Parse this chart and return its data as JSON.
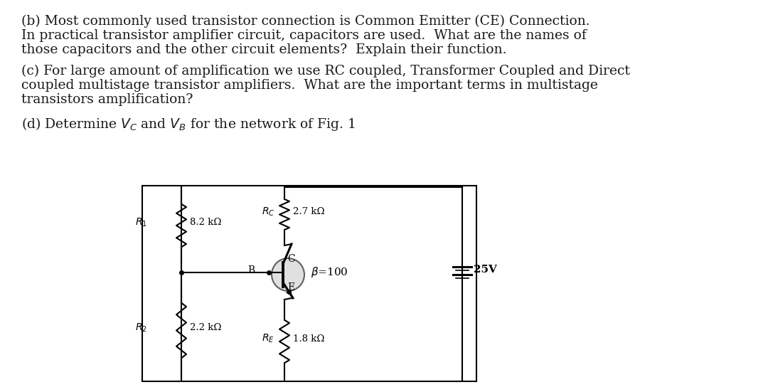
{
  "bg_color": "#ffffff",
  "text_color": "#1a1a1a",
  "line1b": "(b) Most commonly used transistor connection is Common Emitter (CE) Connection.",
  "line2b": "In practical transistor amplifier circuit, capacitors are used.  What are the names of",
  "line3b": "those capacitors and the other circuit elements?  Explain their function.",
  "line1c": "(c) For large amount of amplification we use RC coupled, Transformer Coupled and Direct",
  "line2c": "coupled multistage transistor amplifiers.  What are the important terms in multistage",
  "line3c": "transistors amplification?",
  "line_d": "(d) Determine $V_C$ and $V_B$ for the network of Fig. 1",
  "font_size_body": 13.5,
  "r1_label": "$R_1$",
  "r1_val": "8.2 kΩ",
  "r2_label": "$R_2$",
  "r2_val": "2.2 kΩ",
  "rc_label": "$R_C$",
  "rc_val": "2.7 kΩ",
  "re_label": "$R_E$",
  "re_val": "1.8 kΩ",
  "beta_label": "$\\beta$=100",
  "vcc_label": "25V",
  "node_c": "C",
  "node_b": "B",
  "node_e": "E"
}
